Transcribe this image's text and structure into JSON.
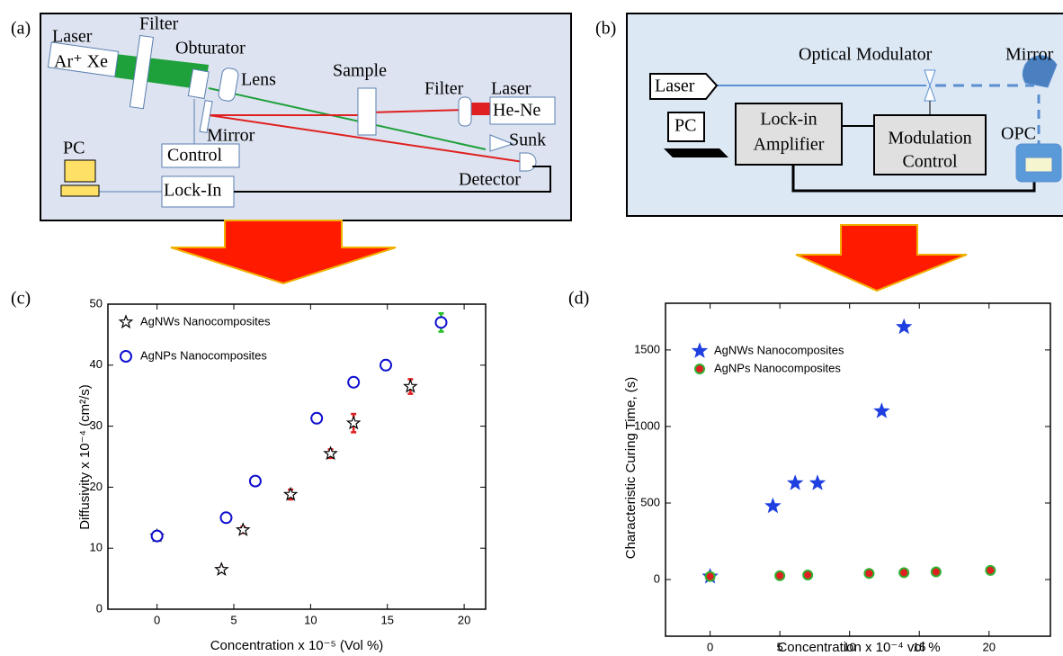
{
  "diagram_a": {
    "label": "(a)",
    "laser": "Laser",
    "laser_type": "Ar⁺ Xe",
    "filter_1": "Filter",
    "obturator": "Obturator",
    "lens": "Lens",
    "sample": "Sample",
    "filter_2": "Filter",
    "laser_2": "Laser",
    "laser_2_type": "He-Ne",
    "mirror": "Mirror",
    "sunk": "Sunk",
    "control": "Control",
    "pc": "PC",
    "lock_in": "Lock-In",
    "detector": "Detector"
  },
  "diagram_b": {
    "label": "(b)",
    "optical_modulator": "Optical Modulator",
    "mirror": "Mirror",
    "laser": "Laser",
    "pc": "PC",
    "lock_in": [
      "Lock-in",
      "Amplifier"
    ],
    "modulation": [
      "Modulation",
      "Control"
    ],
    "opc": "OPC"
  },
  "chart_data": [
    {
      "type": "scatter",
      "panel_label": "(c)",
      "x_label": "Concentration x 10⁻⁵ (Vol %)",
      "y_label": "Diffusivity x 10⁻⁴ (cm²/s)",
      "xlim": [
        -3.2,
        21.4
      ],
      "ylim": [
        0,
        50
      ],
      "xticks": [
        0,
        5,
        10,
        15,
        20
      ],
      "yticks": [
        0,
        10,
        20,
        30,
        40,
        50
      ],
      "series": [
        {
          "name": "AgNWs Nanocomposites",
          "marker": "star",
          "color": "#000000",
          "fill": "#ffffff",
          "error_color": "#e02020",
          "x": [
            0,
            4.2,
            5.6,
            8.7,
            11.3,
            12.8,
            16.5
          ],
          "values": [
            12,
            6.5,
            13,
            18.8,
            25.5,
            30.5,
            36.5
          ],
          "errors": [
            0.5,
            0.3,
            0.5,
            0.8,
            0.7,
            1.5,
            1.2
          ]
        },
        {
          "name": "AgNPs Nanocomposites",
          "marker": "circle",
          "color": "#1010d0",
          "fill": "#ffffff",
          "error_color": "#20c020",
          "x": [
            0,
            4.5,
            6.4,
            10.4,
            12.8,
            14.9,
            18.5
          ],
          "values": [
            12,
            15,
            21,
            31.3,
            37.2,
            40,
            47
          ],
          "errors": [
            0.3,
            0.4,
            0.4,
            0.8,
            0.5,
            0.8,
            1.5
          ]
        }
      ]
    },
    {
      "type": "scatter",
      "panel_label": "(d)",
      "x_label": "Concentration x 10⁻⁴ vol %",
      "y_label": "Characteristic Curing Time, (s)",
      "xlim": [
        -3.2,
        24.4
      ],
      "ylim": [
        -370,
        1805
      ],
      "xticks": [
        0,
        5,
        10,
        15,
        20
      ],
      "yticks": [
        0,
        500,
        1000,
        1500
      ],
      "series": [
        {
          "name": "AgNWs  Nanocomposites",
          "marker": "star",
          "color": "#1f3fe0",
          "fill": "#1f3fe0",
          "x": [
            0,
            4.5,
            6.1,
            7.7,
            12.3,
            13.9
          ],
          "values": [
            20,
            480,
            630,
            630,
            1100,
            1650
          ]
        },
        {
          "name": "AgNPs  Nanocomposites",
          "marker": "circle",
          "color": "#30b030",
          "fill": "#e02020",
          "x": [
            0,
            5,
            7,
            11.4,
            13.9,
            16.2,
            20.1
          ],
          "values": [
            20,
            25,
            30,
            40,
            45,
            50,
            60
          ]
        }
      ]
    }
  ]
}
